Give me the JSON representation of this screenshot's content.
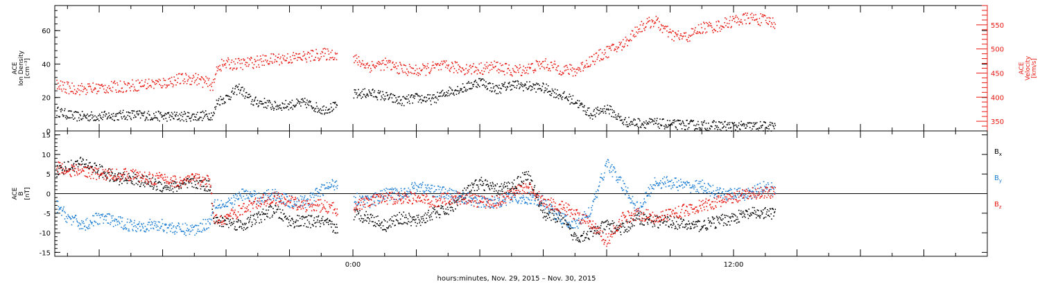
{
  "chart_data": [
    {
      "type": "scatter",
      "panel": "plasma",
      "ylabel_lines": [
        "ACE",
        "Ion Density",
        "[cm⁻³]"
      ],
      "ylim": [
        0,
        75
      ],
      "yticks": [
        0,
        20,
        40,
        60
      ],
      "y2label_lines": [
        "ACE",
        "Velocity",
        "[km/s]"
      ],
      "y2lim": [
        330,
        590
      ],
      "y2ticks": [
        350,
        400,
        450,
        500,
        550
      ],
      "y2_color": "#e8150f",
      "xlim": [
        -9.4,
        20
      ],
      "series": [
        {
          "axis": "left",
          "color": "#000000",
          "x": [
            -9.35,
            -8.8,
            -8.0,
            -7.0,
            -6.0,
            -5.0,
            -4.4,
            -4.3,
            -4.0,
            -3.6,
            -3.2,
            -2.8,
            -2.5,
            -2.0,
            -1.5,
            -1.0,
            -0.5,
            -0.3,
            -0.2,
            0.0,
            0.5,
            1.0,
            1.5,
            2.0,
            2.5,
            3.0,
            3.5,
            4.0,
            4.5,
            5.0,
            5.5,
            6.0,
            6.5,
            7.0,
            7.5,
            8.0,
            8.5,
            9.0,
            9.5,
            10.0,
            10.5,
            11.0,
            11.5,
            12.0,
            12.5,
            13.0,
            13.3
          ],
          "values": [
            12,
            9,
            9,
            10,
            9,
            9,
            10,
            18,
            20,
            26,
            18,
            17,
            15,
            16,
            17,
            13,
            15,
            null,
            null,
            22,
            23,
            21,
            18,
            20,
            19,
            24,
            26,
            30,
            25,
            28,
            27,
            26,
            22,
            18,
            10,
            14,
            6,
            5,
            5,
            4,
            4,
            3.5,
            3.5,
            3,
            3,
            3,
            3
          ]
        },
        {
          "axis": "right",
          "color": "#e8150f",
          "x": [
            -9.35,
            -9.0,
            -8.5,
            -8.0,
            -7.5,
            -7.0,
            -6.5,
            -6.0,
            -5.5,
            -5.0,
            -4.4,
            -4.3,
            -4.0,
            -3.5,
            -3.0,
            -2.5,
            -2.0,
            -1.5,
            -1.0,
            -0.5,
            -0.3,
            -0.2,
            0.0,
            0.5,
            1.0,
            1.5,
            2.0,
            2.5,
            3.0,
            3.5,
            4.0,
            4.5,
            5.0,
            5.5,
            6.0,
            6.5,
            7.0,
            7.5,
            8.0,
            8.5,
            9.0,
            9.5,
            10.0,
            10.5,
            11.0,
            11.5,
            12.0,
            12.5,
            13.0,
            13.3
          ],
          "values": [
            425,
            420,
            418,
            420,
            422,
            425,
            428,
            430,
            438,
            440,
            425,
            465,
            470,
            470,
            475,
            480,
            482,
            485,
            490,
            490,
            null,
            null,
            480,
            465,
            470,
            460,
            455,
            462,
            465,
            460,
            460,
            465,
            455,
            460,
            470,
            460,
            455,
            478,
            495,
            510,
            545,
            560,
            530,
            525,
            545,
            548,
            560,
            565,
            560,
            555
          ]
        }
      ]
    },
    {
      "type": "scatter",
      "panel": "magnetic-field",
      "ylabel_lines": [
        "ACE",
        "B",
        "[nT]"
      ],
      "ylim": [
        -16,
        16
      ],
      "yticks": [
        -15,
        -10,
        -5,
        0,
        5,
        10,
        15
      ],
      "xlim": [
        -9.4,
        20
      ],
      "xtick_labels": [
        {
          "x": 0,
          "label": "0:00"
        },
        {
          "x": 12,
          "label": "12:00"
        }
      ],
      "x_minor_step": 2,
      "x_tick_step": 1,
      "xlabel": "hours:minutes, Nov. 29, 2015 – Nov. 30, 2015",
      "reference_line": 0,
      "series": [
        {
          "name": "Bx",
          "label_main": "B",
          "label_sub": "x",
          "color": "#000000",
          "x": [
            -9.35,
            -9.0,
            -8.5,
            -8.0,
            -7.5,
            -7.0,
            -6.5,
            -6.0,
            -5.5,
            -5.0,
            -4.5,
            -4.4,
            -4.0,
            -3.5,
            -3.0,
            -2.5,
            -2.0,
            -1.5,
            -1.0,
            -0.5,
            -0.3,
            -0.2,
            0.0,
            0.5,
            1.0,
            1.5,
            2.0,
            2.5,
            3.0,
            3.5,
            4.0,
            4.5,
            5.0,
            5.5,
            6.0,
            6.5,
            7.0,
            7.5,
            8.0,
            8.5,
            9.0,
            9.5,
            10.0,
            10.5,
            11.0,
            11.5,
            12.0,
            12.5,
            13.0,
            13.3
          ],
          "values": [
            6,
            7,
            8,
            6,
            4,
            4,
            3,
            2,
            2,
            3,
            2,
            -7,
            -7,
            -8,
            -6,
            -4,
            -7,
            -7,
            -7,
            -9,
            null,
            null,
            -5,
            -6,
            -8,
            -6,
            -7,
            -5,
            -4,
            0,
            3,
            1,
            2,
            5,
            -5,
            -6,
            -11,
            -10,
            -8,
            -9,
            -6,
            -7,
            -7,
            -8,
            -8,
            -7,
            -6,
            -5,
            -5,
            -5
          ]
        },
        {
          "name": "By",
          "label_main": "B",
          "label_sub": "y",
          "color": "#1f7fd4",
          "x": [
            -9.35,
            -9.0,
            -8.5,
            -8.0,
            -7.5,
            -7.0,
            -6.5,
            -6.0,
            -5.5,
            -5.0,
            -4.5,
            -4.4,
            -4.0,
            -3.5,
            -3.0,
            -2.5,
            -2.0,
            -1.5,
            -1.0,
            -0.5,
            -0.3,
            -0.2,
            0.0,
            0.5,
            1.0,
            1.5,
            2.0,
            2.5,
            3.0,
            3.5,
            4.0,
            4.5,
            5.0,
            5.5,
            6.0,
            6.5,
            7.0,
            7.5,
            8.0,
            8.5,
            9.0,
            9.5,
            10.0,
            10.5,
            11.0,
            11.5,
            12.0,
            12.5,
            13.0,
            13.3
          ],
          "values": [
            -3,
            -6,
            -8,
            -6,
            -7,
            -8,
            -8,
            -8,
            -9,
            -9,
            -7,
            -2,
            -3,
            0,
            -1,
            0,
            -2,
            -2,
            1,
            3,
            null,
            null,
            -1,
            -2,
            0,
            0,
            2,
            1,
            0,
            -1,
            -2,
            -2,
            -1,
            -1,
            -2,
            -6,
            -8,
            -4,
            8,
            2,
            -4,
            3,
            3,
            2,
            2,
            0,
            0,
            0,
            2,
            1
          ]
        },
        {
          "name": "Bz",
          "label_main": "B",
          "label_sub": "z",
          "color": "#e8150f",
          "x": [
            -9.35,
            -9.0,
            -8.5,
            -8.0,
            -7.5,
            -7.0,
            -6.5,
            -6.0,
            -5.5,
            -5.0,
            -4.5,
            -4.4,
            -4.0,
            -3.5,
            -3.0,
            -2.5,
            -2.0,
            -1.5,
            -1.0,
            -0.5,
            -0.3,
            -0.2,
            0.0,
            0.5,
            1.0,
            1.5,
            2.0,
            2.5,
            3.0,
            3.5,
            4.0,
            4.5,
            5.0,
            5.5,
            6.0,
            6.5,
            7.0,
            7.5,
            8.0,
            8.5,
            9.0,
            9.5,
            10.0,
            10.5,
            11.0,
            11.5,
            12.0,
            12.5,
            13.0,
            13.3
          ],
          "values": [
            7,
            6,
            6,
            5,
            5,
            5,
            4,
            4,
            3,
            4,
            3,
            -7,
            -6,
            -4,
            -2,
            -1,
            -2,
            -3,
            -3,
            -4,
            null,
            null,
            -3,
            -2,
            -1,
            -1,
            -1,
            -2,
            -1,
            -1,
            -2,
            -2,
            0,
            2,
            -2,
            -3,
            -5,
            -8,
            -12,
            -6,
            -5,
            -6,
            -5,
            -4,
            -3,
            -2,
            -1,
            0,
            0.5,
            0.5
          ]
        }
      ]
    }
  ]
}
